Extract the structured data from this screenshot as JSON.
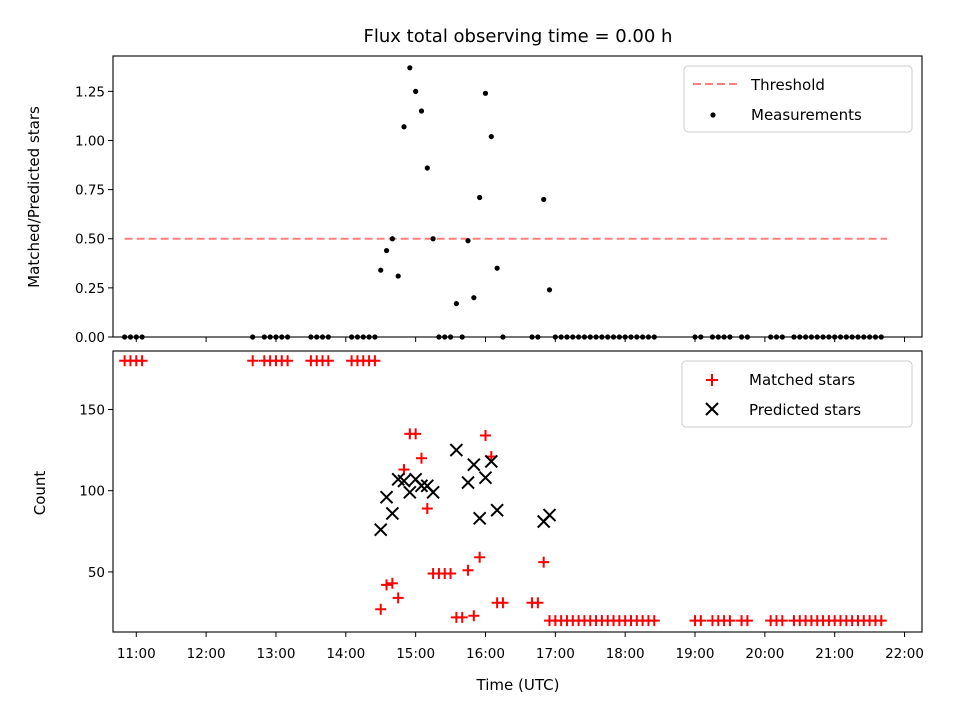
{
  "chart_data": [
    {
      "type": "scatter",
      "title": "Flux total observing time = 0.00 h",
      "xlabel": "",
      "ylabel": "Matched/Predicted stars",
      "ylim": [
        0,
        1.43
      ],
      "xlim": [
        "10:40",
        "22:15"
      ],
      "yticks": [
        "0.00",
        "0.25",
        "0.50",
        "0.75",
        "1.00",
        "1.25"
      ],
      "grid": false,
      "legend_position": "top-right",
      "threshold": {
        "name": "Threshold",
        "value": 0.5,
        "x_start": "10:50",
        "x_end": "21:45",
        "color": "#ff7f7f",
        "style": "dashed"
      },
      "series": [
        {
          "name": "Measurements",
          "color": "#000000",
          "marker": "dot",
          "points": [
            [
              "10:50",
              0
            ],
            [
              "10:55",
              0
            ],
            [
              "11:00",
              0
            ],
            [
              "11:05",
              0
            ],
            [
              "12:40",
              0
            ],
            [
              "12:50",
              0
            ],
            [
              "12:55",
              0
            ],
            [
              "13:00",
              0
            ],
            [
              "13:05",
              0
            ],
            [
              "13:10",
              0
            ],
            [
              "13:30",
              0
            ],
            [
              "13:35",
              0
            ],
            [
              "13:40",
              0
            ],
            [
              "13:45",
              0
            ],
            [
              "14:05",
              0
            ],
            [
              "14:10",
              0
            ],
            [
              "14:15",
              0
            ],
            [
              "14:20",
              0
            ],
            [
              "14:25",
              0
            ],
            [
              "14:30",
              0.34
            ],
            [
              "14:35",
              0.44
            ],
            [
              "14:40",
              0.5
            ],
            [
              "14:45",
              0.31
            ],
            [
              "14:50",
              1.07
            ],
            [
              "14:55",
              1.37
            ],
            [
              "15:00",
              1.25
            ],
            [
              "15:05",
              1.15
            ],
            [
              "15:10",
              0.86
            ],
            [
              "15:15",
              0.5
            ],
            [
              "15:20",
              0
            ],
            [
              "15:25",
              0
            ],
            [
              "15:30",
              0
            ],
            [
              "15:35",
              0.17
            ],
            [
              "15:40",
              0
            ],
            [
              "15:45",
              0.49
            ],
            [
              "15:50",
              0.2
            ],
            [
              "15:55",
              0.71
            ],
            [
              "16:00",
              1.24
            ],
            [
              "16:05",
              1.02
            ],
            [
              "16:10",
              0.35
            ],
            [
              "16:15",
              0
            ],
            [
              "16:40",
              0
            ],
            [
              "16:45",
              0
            ],
            [
              "16:50",
              0.7
            ],
            [
              "16:55",
              0.24
            ],
            [
              "17:00",
              0
            ],
            [
              "17:05",
              0
            ],
            [
              "17:10",
              0
            ],
            [
              "17:15",
              0
            ],
            [
              "17:20",
              0
            ],
            [
              "17:25",
              0
            ],
            [
              "17:30",
              0
            ],
            [
              "17:35",
              0
            ],
            [
              "17:40",
              0
            ],
            [
              "17:45",
              0
            ],
            [
              "17:50",
              0
            ],
            [
              "17:55",
              0
            ],
            [
              "18:00",
              0
            ],
            [
              "18:05",
              0
            ],
            [
              "18:10",
              0
            ],
            [
              "18:15",
              0
            ],
            [
              "18:20",
              0
            ],
            [
              "18:25",
              0
            ],
            [
              "19:00",
              0
            ],
            [
              "19:05",
              0
            ],
            [
              "19:15",
              0
            ],
            [
              "19:20",
              0
            ],
            [
              "19:25",
              0
            ],
            [
              "19:30",
              0
            ],
            [
              "19:40",
              0
            ],
            [
              "19:45",
              0
            ],
            [
              "20:05",
              0
            ],
            [
              "20:10",
              0
            ],
            [
              "20:15",
              0
            ],
            [
              "20:25",
              0
            ],
            [
              "20:30",
              0
            ],
            [
              "20:35",
              0
            ],
            [
              "20:40",
              0
            ],
            [
              "20:45",
              0
            ],
            [
              "20:50",
              0
            ],
            [
              "20:55",
              0
            ],
            [
              "21:00",
              0
            ],
            [
              "21:05",
              0
            ],
            [
              "21:10",
              0
            ],
            [
              "21:15",
              0
            ],
            [
              "21:20",
              0
            ],
            [
              "21:25",
              0
            ],
            [
              "21:30",
              0
            ],
            [
              "21:35",
              0
            ],
            [
              "21:40",
              0
            ]
          ]
        }
      ]
    },
    {
      "type": "scatter",
      "title": "",
      "xlabel": "Time (UTC)",
      "ylabel": "Count",
      "ylim": [
        13,
        186
      ],
      "xlim": [
        "10:40",
        "22:15"
      ],
      "yticks": [
        "50",
        "100",
        "150"
      ],
      "xticks": [
        "11:00",
        "12:00",
        "13:00",
        "14:00",
        "15:00",
        "16:00",
        "17:00",
        "18:00",
        "19:00",
        "20:00",
        "21:00",
        "22:00"
      ],
      "grid": false,
      "legend_position": "top-right",
      "series": [
        {
          "name": "Matched stars",
          "color": "#ff0000",
          "marker": "plus",
          "points": [
            [
              "10:50",
              180
            ],
            [
              "10:55",
              180
            ],
            [
              "11:00",
              180
            ],
            [
              "11:05",
              180
            ],
            [
              "12:40",
              180
            ],
            [
              "12:50",
              180
            ],
            [
              "12:55",
              180
            ],
            [
              "13:00",
              180
            ],
            [
              "13:05",
              180
            ],
            [
              "13:10",
              180
            ],
            [
              "13:30",
              180
            ],
            [
              "13:35",
              180
            ],
            [
              "13:40",
              180
            ],
            [
              "13:45",
              180
            ],
            [
              "14:05",
              180
            ],
            [
              "14:10",
              180
            ],
            [
              "14:15",
              180
            ],
            [
              "14:20",
              180
            ],
            [
              "14:25",
              180
            ],
            [
              "14:30",
              27
            ],
            [
              "14:35",
              42
            ],
            [
              "14:40",
              43
            ],
            [
              "14:45",
              34
            ],
            [
              "14:50",
              113
            ],
            [
              "14:55",
              135
            ],
            [
              "15:00",
              135
            ],
            [
              "15:05",
              120
            ],
            [
              "15:10",
              89
            ],
            [
              "15:15",
              49
            ],
            [
              "15:20",
              49
            ],
            [
              "15:25",
              49
            ],
            [
              "15:30",
              49
            ],
            [
              "15:35",
              22
            ],
            [
              "15:40",
              22
            ],
            [
              "15:45",
              51
            ],
            [
              "15:50",
              23
            ],
            [
              "15:55",
              59
            ],
            [
              "16:00",
              134
            ],
            [
              "16:05",
              121
            ],
            [
              "16:10",
              31
            ],
            [
              "16:15",
              31
            ],
            [
              "16:40",
              31
            ],
            [
              "16:45",
              31
            ],
            [
              "16:50",
              56
            ],
            [
              "16:55",
              20
            ],
            [
              "17:00",
              20
            ],
            [
              "17:05",
              20
            ],
            [
              "17:10",
              20
            ],
            [
              "17:15",
              20
            ],
            [
              "17:20",
              20
            ],
            [
              "17:25",
              20
            ],
            [
              "17:30",
              20
            ],
            [
              "17:35",
              20
            ],
            [
              "17:40",
              20
            ],
            [
              "17:45",
              20
            ],
            [
              "17:50",
              20
            ],
            [
              "17:55",
              20
            ],
            [
              "18:00",
              20
            ],
            [
              "18:05",
              20
            ],
            [
              "18:10",
              20
            ],
            [
              "18:15",
              20
            ],
            [
              "18:20",
              20
            ],
            [
              "18:25",
              20
            ],
            [
              "19:00",
              20
            ],
            [
              "19:05",
              20
            ],
            [
              "19:15",
              20
            ],
            [
              "19:20",
              20
            ],
            [
              "19:25",
              20
            ],
            [
              "19:30",
              20
            ],
            [
              "19:40",
              20
            ],
            [
              "19:45",
              20
            ],
            [
              "20:05",
              20
            ],
            [
              "20:10",
              20
            ],
            [
              "20:15",
              20
            ],
            [
              "20:25",
              20
            ],
            [
              "20:30",
              20
            ],
            [
              "20:35",
              20
            ],
            [
              "20:40",
              20
            ],
            [
              "20:45",
              20
            ],
            [
              "20:50",
              20
            ],
            [
              "20:55",
              20
            ],
            [
              "21:00",
              20
            ],
            [
              "21:05",
              20
            ],
            [
              "21:10",
              20
            ],
            [
              "21:15",
              20
            ],
            [
              "21:20",
              20
            ],
            [
              "21:25",
              20
            ],
            [
              "21:30",
              20
            ],
            [
              "21:35",
              20
            ],
            [
              "21:40",
              20
            ]
          ]
        },
        {
          "name": "Predicted stars",
          "color": "#000000",
          "marker": "x",
          "points": [
            [
              "14:30",
              76
            ],
            [
              "14:35",
              96
            ],
            [
              "14:40",
              86
            ],
            [
              "14:45",
              107
            ],
            [
              "14:50",
              106
            ],
            [
              "14:55",
              99
            ],
            [
              "15:00",
              107
            ],
            [
              "15:05",
              103
            ],
            [
              "15:10",
              103
            ],
            [
              "15:15",
              99
            ],
            [
              "15:35",
              125
            ],
            [
              "15:45",
              105
            ],
            [
              "15:50",
              116
            ],
            [
              "15:55",
              83
            ],
            [
              "16:00",
              108
            ],
            [
              "16:05",
              118
            ],
            [
              "16:10",
              88
            ],
            [
              "16:50",
              81
            ],
            [
              "16:55",
              85
            ]
          ]
        }
      ]
    }
  ]
}
